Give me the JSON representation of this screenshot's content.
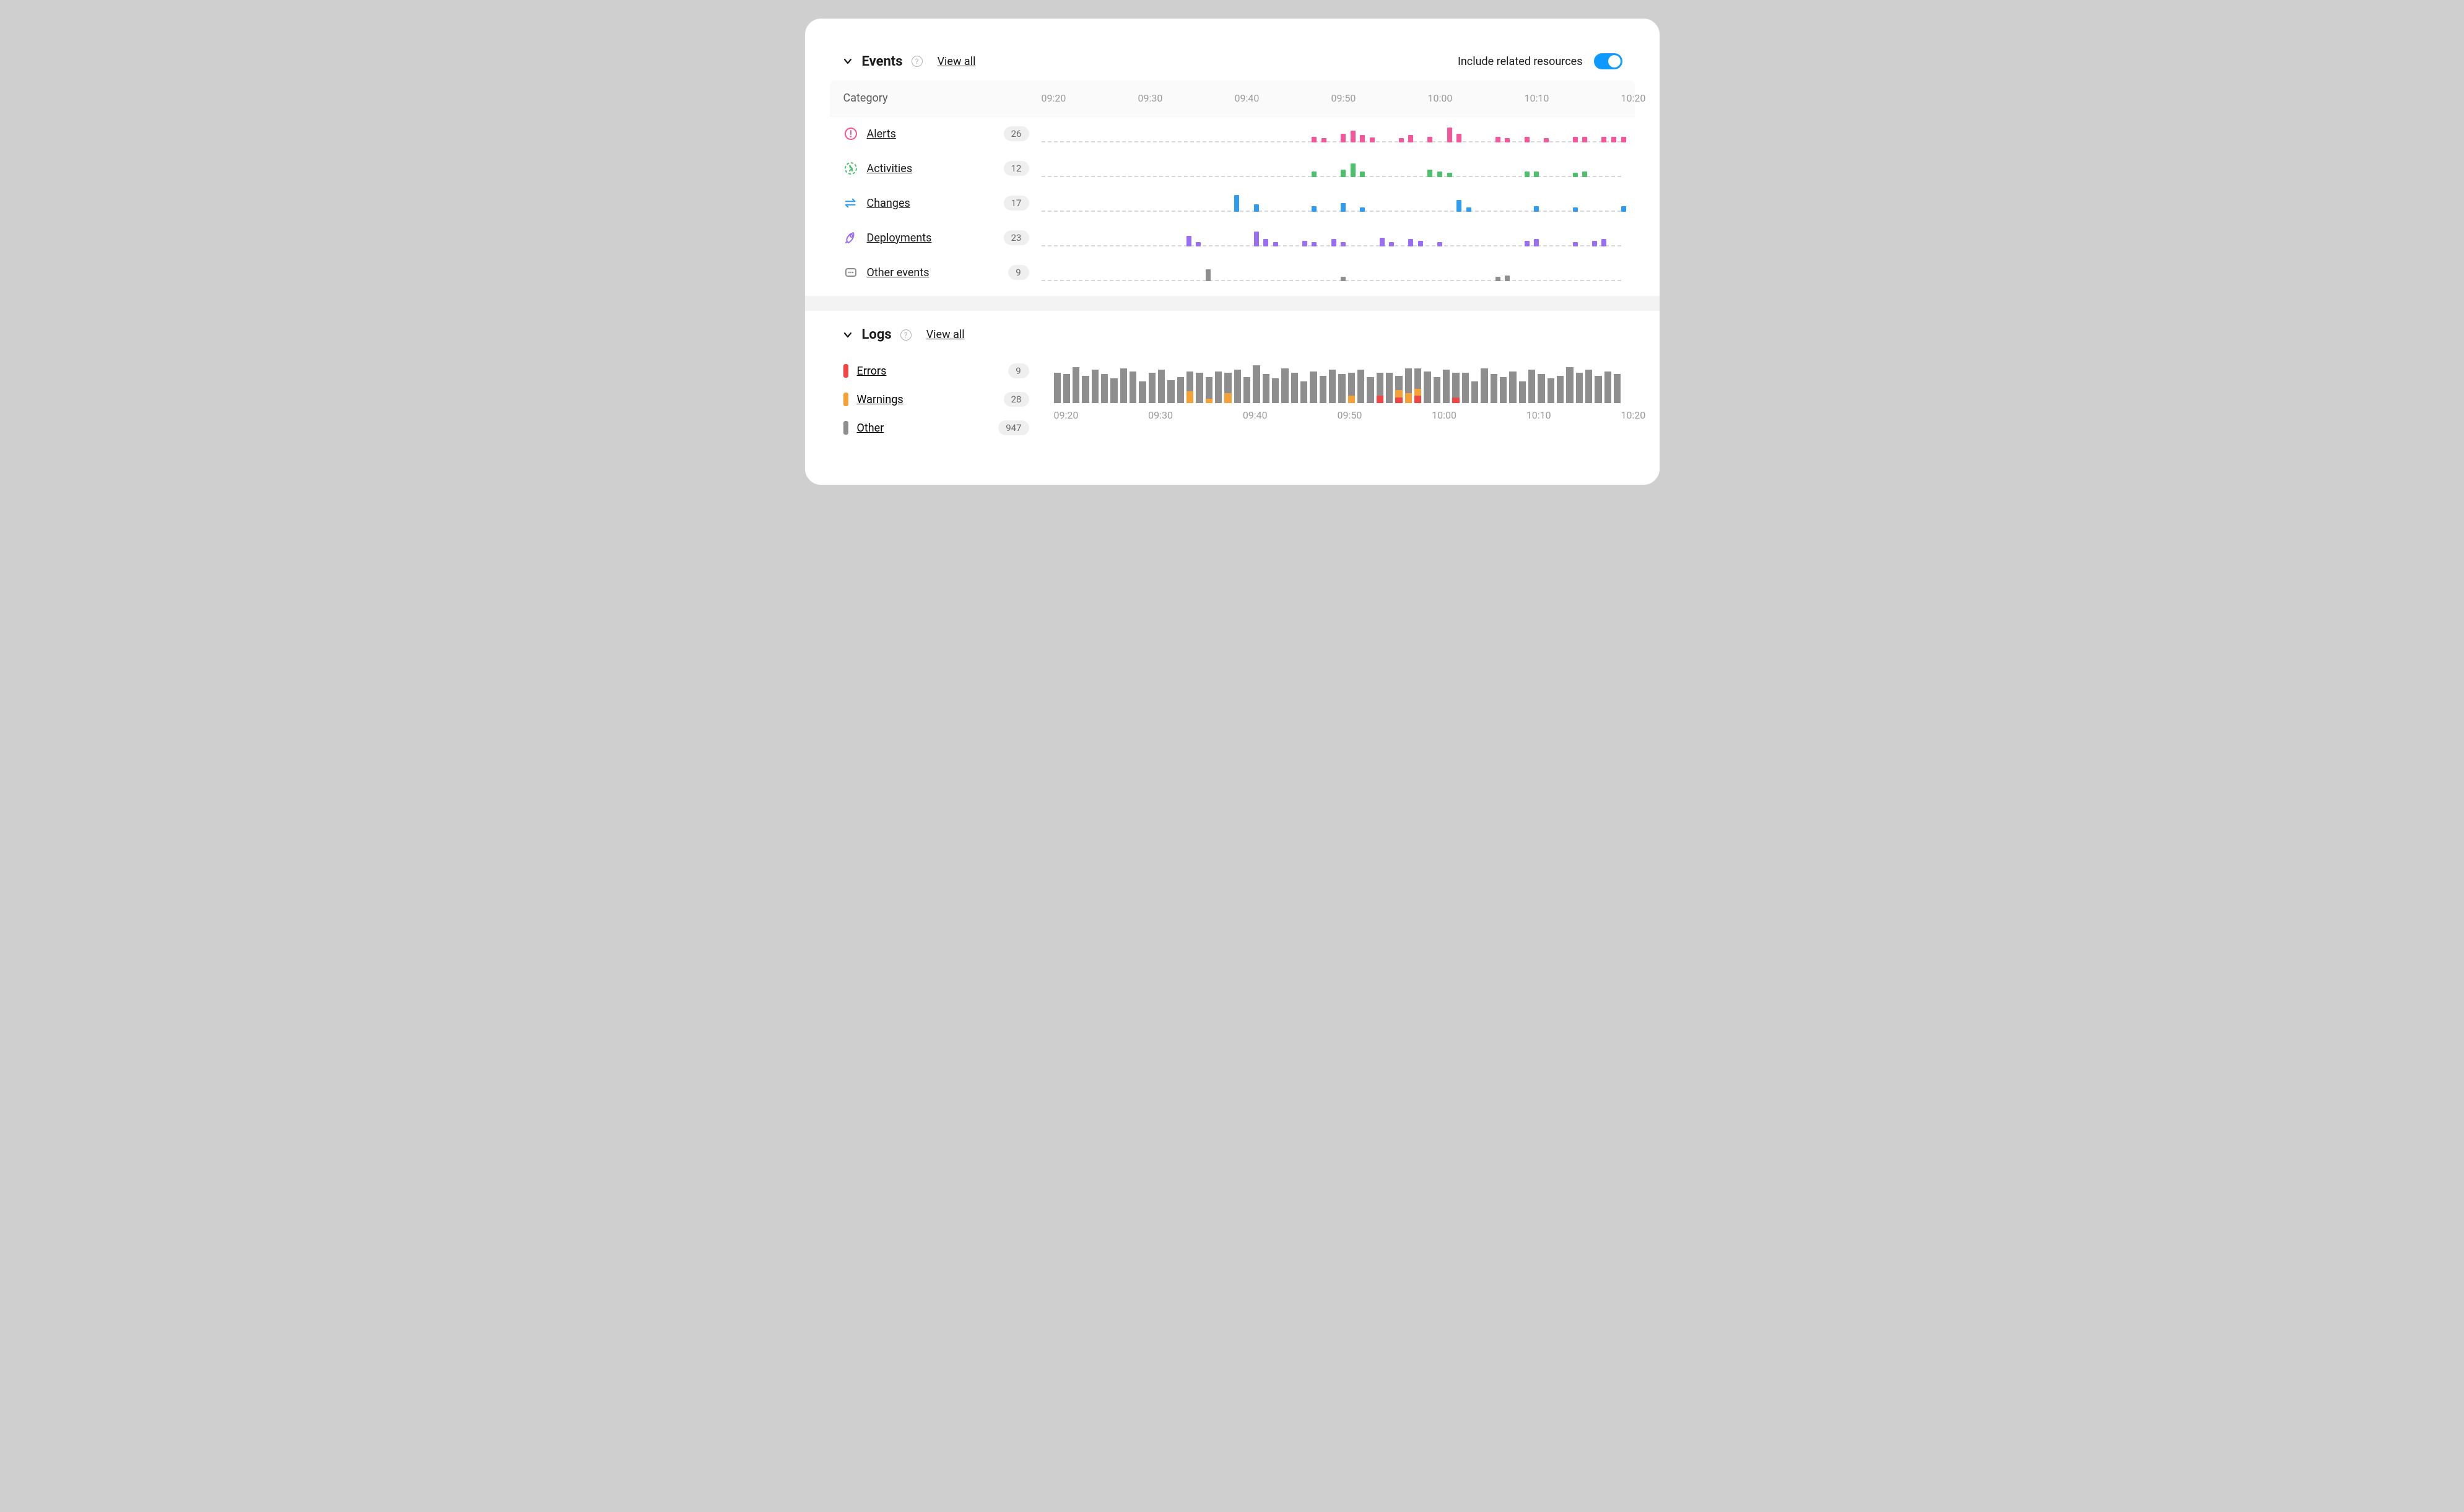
{
  "colors": {
    "alerts": "#f5569a",
    "activities": "#4cc06a",
    "changes": "#2f9cf2",
    "deployments": "#9a6ef2",
    "other": "#8e8e8e",
    "errors": "#f04545",
    "warnings": "#f5a138",
    "logs_other": "#8e8e8e",
    "toggle_on": "#0d99ff",
    "grid": "#d8d8d8",
    "text_muted": "#9a9a9a"
  },
  "time_axis": [
    "09:20",
    "09:30",
    "09:40",
    "09:50",
    "10:00",
    "10:10",
    "10:20"
  ],
  "events": {
    "title": "Events",
    "view_all": "View all",
    "toggle_label": "Include related resources",
    "toggle_on": true,
    "category_header": "Category",
    "spark": {
      "xmin": 0,
      "xmax": 60,
      "ymax": 24,
      "bar_width_pct": 1.0
    },
    "categories": [
      {
        "key": "alerts",
        "label": "Alerts",
        "count": 26,
        "color": "#f5569a",
        "icon": "alert-icon",
        "bars": [
          {
            "x": 28,
            "h": 6
          },
          {
            "x": 29,
            "h": 4
          },
          {
            "x": 31,
            "h": 10
          },
          {
            "x": 32,
            "h": 14
          },
          {
            "x": 33,
            "h": 8
          },
          {
            "x": 34,
            "h": 5
          },
          {
            "x": 37,
            "h": 4
          },
          {
            "x": 38,
            "h": 8
          },
          {
            "x": 40,
            "h": 6
          },
          {
            "x": 42,
            "h": 18
          },
          {
            "x": 43,
            "h": 10
          },
          {
            "x": 47,
            "h": 6
          },
          {
            "x": 48,
            "h": 4
          },
          {
            "x": 50,
            "h": 6
          },
          {
            "x": 52,
            "h": 4
          },
          {
            "x": 55,
            "h": 6
          },
          {
            "x": 56,
            "h": 6
          },
          {
            "x": 58,
            "h": 6
          },
          {
            "x": 59,
            "h": 6
          },
          {
            "x": 60,
            "h": 6
          }
        ]
      },
      {
        "key": "activities",
        "label": "Activities",
        "count": 12,
        "color": "#4cc06a",
        "icon": "activity-icon",
        "bars": [
          {
            "x": 28,
            "h": 6
          },
          {
            "x": 31,
            "h": 8
          },
          {
            "x": 32,
            "h": 16
          },
          {
            "x": 33,
            "h": 6
          },
          {
            "x": 40,
            "h": 8
          },
          {
            "x": 41,
            "h": 6
          },
          {
            "x": 42,
            "h": 4
          },
          {
            "x": 50,
            "h": 6
          },
          {
            "x": 51,
            "h": 6
          },
          {
            "x": 55,
            "h": 4
          },
          {
            "x": 56,
            "h": 6
          }
        ]
      },
      {
        "key": "changes",
        "label": "Changes",
        "count": 17,
        "color": "#2f9cf2",
        "icon": "changes-icon",
        "bars": [
          {
            "x": 20,
            "h": 20
          },
          {
            "x": 22,
            "h": 8
          },
          {
            "x": 28,
            "h": 6
          },
          {
            "x": 31,
            "h": 10
          },
          {
            "x": 33,
            "h": 4
          },
          {
            "x": 43,
            "h": 14
          },
          {
            "x": 44,
            "h": 4
          },
          {
            "x": 51,
            "h": 6
          },
          {
            "x": 55,
            "h": 4
          },
          {
            "x": 60,
            "h": 6
          }
        ]
      },
      {
        "key": "deployments",
        "label": "Deployments",
        "count": 23,
        "color": "#9a6ef2",
        "icon": "deploy-icon",
        "bars": [
          {
            "x": 15,
            "h": 12
          },
          {
            "x": 16,
            "h": 4
          },
          {
            "x": 22,
            "h": 18
          },
          {
            "x": 23,
            "h": 8
          },
          {
            "x": 24,
            "h": 4
          },
          {
            "x": 27,
            "h": 6
          },
          {
            "x": 28,
            "h": 4
          },
          {
            "x": 30,
            "h": 8
          },
          {
            "x": 31,
            "h": 4
          },
          {
            "x": 35,
            "h": 10
          },
          {
            "x": 36,
            "h": 4
          },
          {
            "x": 38,
            "h": 8
          },
          {
            "x": 39,
            "h": 6
          },
          {
            "x": 41,
            "h": 4
          },
          {
            "x": 50,
            "h": 6
          },
          {
            "x": 51,
            "h": 8
          },
          {
            "x": 55,
            "h": 4
          },
          {
            "x": 57,
            "h": 6
          },
          {
            "x": 58,
            "h": 8
          }
        ]
      },
      {
        "key": "other",
        "label": "Other events",
        "count": 9,
        "color": "#8e8e8e",
        "icon": "other-icon",
        "bars": [
          {
            "x": 17,
            "h": 14
          },
          {
            "x": 31,
            "h": 4
          },
          {
            "x": 47,
            "h": 4
          },
          {
            "x": 48,
            "h": 6
          }
        ]
      }
    ]
  },
  "logs": {
    "title": "Logs",
    "view_all": "View all",
    "legend": [
      {
        "key": "errors",
        "label": "Errors",
        "count": 9,
        "color": "#f04545"
      },
      {
        "key": "warnings",
        "label": "Warnings",
        "count": 28,
        "color": "#f5a138"
      },
      {
        "key": "other",
        "label": "Other",
        "count": 947,
        "color": "#8e8e8e"
      }
    ],
    "chart": {
      "ymax": 60,
      "columns": [
        {
          "o": 42,
          "w": 0,
          "e": 0
        },
        {
          "o": 40,
          "w": 0,
          "e": 0
        },
        {
          "o": 50,
          "w": 0,
          "e": 0
        },
        {
          "o": 38,
          "w": 0,
          "e": 0
        },
        {
          "o": 46,
          "w": 0,
          "e": 0
        },
        {
          "o": 40,
          "w": 0,
          "e": 0
        },
        {
          "o": 34,
          "w": 0,
          "e": 0
        },
        {
          "o": 48,
          "w": 0,
          "e": 0
        },
        {
          "o": 44,
          "w": 0,
          "e": 0
        },
        {
          "o": 30,
          "w": 0,
          "e": 0
        },
        {
          "o": 42,
          "w": 0,
          "e": 0
        },
        {
          "o": 46,
          "w": 0,
          "e": 0
        },
        {
          "o": 32,
          "w": 0,
          "e": 0
        },
        {
          "o": 36,
          "w": 0,
          "e": 0
        },
        {
          "o": 28,
          "w": 16,
          "e": 0
        },
        {
          "o": 42,
          "w": 0,
          "e": 0
        },
        {
          "o": 30,
          "w": 6,
          "e": 0
        },
        {
          "o": 44,
          "w": 0,
          "e": 0
        },
        {
          "o": 28,
          "w": 14,
          "e": 0
        },
        {
          "o": 46,
          "w": 0,
          "e": 0
        },
        {
          "o": 36,
          "w": 0,
          "e": 0
        },
        {
          "o": 52,
          "w": 0,
          "e": 0
        },
        {
          "o": 40,
          "w": 0,
          "e": 0
        },
        {
          "o": 34,
          "w": 0,
          "e": 0
        },
        {
          "o": 48,
          "w": 0,
          "e": 0
        },
        {
          "o": 42,
          "w": 0,
          "e": 0
        },
        {
          "o": 30,
          "w": 0,
          "e": 0
        },
        {
          "o": 44,
          "w": 0,
          "e": 0
        },
        {
          "o": 38,
          "w": 0,
          "e": 0
        },
        {
          "o": 46,
          "w": 0,
          "e": 0
        },
        {
          "o": 40,
          "w": 0,
          "e": 0
        },
        {
          "o": 32,
          "w": 10,
          "e": 0
        },
        {
          "o": 46,
          "w": 0,
          "e": 0
        },
        {
          "o": 36,
          "w": 0,
          "e": 0
        },
        {
          "o": 32,
          "w": 0,
          "e": 10
        },
        {
          "o": 42,
          "w": 0,
          "e": 0
        },
        {
          "o": 20,
          "w": 10,
          "e": 8
        },
        {
          "o": 34,
          "w": 14,
          "e": 0
        },
        {
          "o": 28,
          "w": 10,
          "e": 10
        },
        {
          "o": 44,
          "w": 0,
          "e": 0
        },
        {
          "o": 36,
          "w": 0,
          "e": 0
        },
        {
          "o": 46,
          "w": 0,
          "e": 0
        },
        {
          "o": 34,
          "w": 0,
          "e": 8
        },
        {
          "o": 42,
          "w": 0,
          "e": 0
        },
        {
          "o": 30,
          "w": 0,
          "e": 0
        },
        {
          "o": 48,
          "w": 0,
          "e": 0
        },
        {
          "o": 40,
          "w": 0,
          "e": 0
        },
        {
          "o": 36,
          "w": 0,
          "e": 0
        },
        {
          "o": 44,
          "w": 0,
          "e": 0
        },
        {
          "o": 30,
          "w": 0,
          "e": 0
        },
        {
          "o": 46,
          "w": 0,
          "e": 0
        },
        {
          "o": 40,
          "w": 0,
          "e": 0
        },
        {
          "o": 34,
          "w": 0,
          "e": 0
        },
        {
          "o": 38,
          "w": 0,
          "e": 0
        },
        {
          "o": 50,
          "w": 0,
          "e": 0
        },
        {
          "o": 42,
          "w": 0,
          "e": 0
        },
        {
          "o": 46,
          "w": 0,
          "e": 0
        },
        {
          "o": 38,
          "w": 0,
          "e": 0
        },
        {
          "o": 44,
          "w": 0,
          "e": 0
        },
        {
          "o": 40,
          "w": 0,
          "e": 0
        }
      ]
    }
  }
}
